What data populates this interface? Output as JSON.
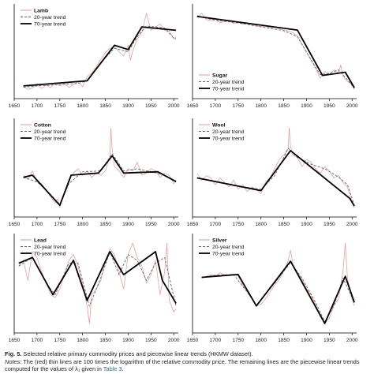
{
  "caption": {
    "figure_label": "Fig. 5.",
    "title": "Selected relative primary commodity prices and piecewise linear trends (HKMW dataset).",
    "notes_label": "Notes:",
    "notes_text": "The (red) thin lines are 100 times the logarithm of the relative commodity price. The remaining lines are the piecewise linear trends computed for the values of λ₁ given in",
    "notes_ref": "Table 3",
    "notes_end": "."
  },
  "colors": {
    "raw": "#e8a0a0",
    "trend20": "#666666",
    "trend70": "#000000",
    "axis": "#000000"
  },
  "chart_data": [
    {
      "type": "line",
      "panel": "Lamb",
      "legend": [
        "Lamb",
        "20-year trend",
        "70-year trend"
      ],
      "legend_position": "top-left",
      "x_ticks": [
        "1650",
        "1700",
        "1750",
        "1800",
        "1850",
        "1900",
        "1950",
        "2000"
      ],
      "xlim": [
        1650,
        2010
      ],
      "series": [
        {
          "name": "Lamb",
          "x": [
            1670,
            1680,
            1690,
            1700,
            1710,
            1720,
            1730,
            1740,
            1750,
            1760,
            1770,
            1780,
            1790,
            1800,
            1810,
            1820,
            1830,
            1840,
            1850,
            1860,
            1870,
            1880,
            1890,
            1900,
            1905,
            1910,
            1920,
            1930,
            1940,
            1945,
            1950,
            1960,
            1970,
            1980,
            1990,
            2000,
            2005
          ],
          "y": [
            -2,
            -8,
            -5,
            5,
            -6,
            2,
            -4,
            8,
            0,
            6,
            -3,
            3,
            10,
            -2,
            22,
            30,
            45,
            62,
            78,
            88,
            92,
            80,
            70,
            95,
            60,
            82,
            110,
            125,
            170,
            150,
            130,
            138,
            145,
            130,
            128,
            110,
            115
          ]
        },
        {
          "name": "20-year trend",
          "x": [
            1670,
            1700,
            1730,
            1760,
            1790,
            1810,
            1840,
            1870,
            1900,
            1920,
            1940,
            1960,
            1980,
            2000,
            2005
          ],
          "y": [
            -3,
            0,
            2,
            4,
            6,
            12,
            55,
            88,
            80,
            115,
            140,
            138,
            135,
            112,
            110
          ]
        },
        {
          "name": "70-year trend",
          "x": [
            1670,
            1810,
            1870,
            1900,
            1930,
            2005
          ],
          "y": [
            0,
            12,
            95,
            85,
            138,
            130
          ]
        }
      ]
    },
    {
      "type": "line",
      "panel": "Sugar",
      "legend": [
        "Sugar",
        "20-year trend",
        "70-year trend"
      ],
      "legend_position": "bottom-left",
      "x_ticks": [
        "1650",
        "1700",
        "1750",
        "1800",
        "1850",
        "1900",
        "1950",
        "2000"
      ],
      "xlim": [
        1650,
        2010
      ],
      "series": [
        {
          "name": "Sugar",
          "x": [
            1660,
            1670,
            1680,
            1690,
            1700,
            1710,
            1720,
            1730,
            1740,
            1750,
            1760,
            1770,
            1780,
            1790,
            1800,
            1810,
            1820,
            1830,
            1840,
            1850,
            1860,
            1870,
            1880,
            1890,
            1900,
            1910,
            1920,
            1930,
            1940,
            1950,
            1960,
            1970,
            1975,
            1980,
            1990,
            2000,
            2005
          ],
          "y": [
            128,
            140,
            120,
            118,
            125,
            110,
            115,
            118,
            108,
            112,
            106,
            110,
            104,
            102,
            98,
            100,
            95,
            96,
            92,
            88,
            85,
            80,
            70,
            45,
            20,
            -5,
            -30,
            -60,
            -40,
            -50,
            -35,
            -45,
            -20,
            -55,
            -70,
            -80,
            -95
          ]
        },
        {
          "name": "20-year trend",
          "x": [
            1660,
            1700,
            1750,
            1800,
            1850,
            1880,
            1900,
            1930,
            1950,
            1970,
            1990,
            2005
          ],
          "y": [
            132,
            118,
            110,
            98,
            86,
            68,
            20,
            -50,
            -45,
            -35,
            -65,
            -92
          ]
        },
        {
          "name": "70-year trend",
          "x": [
            1660,
            1880,
            1935,
            1985,
            2005
          ],
          "y": [
            130,
            88,
            -52,
            -42,
            -90
          ]
        }
      ]
    },
    {
      "type": "line",
      "panel": "Cotton",
      "legend": [
        "Cotton",
        "20-year trend",
        "70-year trend"
      ],
      "legend_position": "top-left",
      "x_ticks": [
        "1650",
        "1700",
        "1750",
        "1800",
        "1850",
        "1900",
        "1950",
        "2000"
      ],
      "xlim": [
        1650,
        2010
      ],
      "series": [
        {
          "name": "Cotton",
          "x": [
            1670,
            1680,
            1690,
            1700,
            1710,
            1720,
            1730,
            1740,
            1745,
            1750,
            1760,
            1770,
            1780,
            1790,
            1800,
            1810,
            1820,
            1830,
            1840,
            1850,
            1860,
            1862,
            1865,
            1870,
            1880,
            1890,
            1900,
            1910,
            1920,
            1930,
            1940,
            1950,
            1960,
            1970,
            1980,
            1990,
            2000,
            2005
          ],
          "y": [
            -20,
            -30,
            -10,
            -35,
            -40,
            -55,
            -70,
            -85,
            -75,
            -95,
            -60,
            -30,
            -15,
            -5,
            -20,
            -10,
            -25,
            -15,
            -20,
            -10,
            25,
            90,
            40,
            0,
            -10,
            -25,
            -5,
            -10,
            10,
            -20,
            -15,
            -5,
            -10,
            -25,
            -15,
            -20,
            -40,
            -30
          ]
        },
        {
          "name": "20-year trend",
          "x": [
            1670,
            1700,
            1730,
            1750,
            1770,
            1800,
            1840,
            1865,
            1890,
            1920,
            1950,
            1980,
            2005
          ],
          "y": [
            -25,
            -35,
            -65,
            -88,
            -40,
            -12,
            -10,
            30,
            -10,
            -5,
            -12,
            -20,
            -35
          ]
        },
        {
          "name": "70-year trend",
          "x": [
            1670,
            1690,
            1750,
            1775,
            1835,
            1865,
            1890,
            1965,
            2005
          ],
          "y": [
            -25,
            -20,
            -90,
            -20,
            -15,
            25,
            -15,
            -12,
            -35
          ]
        }
      ]
    },
    {
      "type": "line",
      "panel": "Wool",
      "legend": [
        "Wool",
        "20-year trend",
        "70-year trend"
      ],
      "legend_position": "top-left",
      "x_ticks": [
        "1650",
        "1700",
        "1750",
        "1800",
        "1850",
        "1900",
        "1950",
        "2000"
      ],
      "xlim": [
        1650,
        2010
      ],
      "series": [
        {
          "name": "Wool",
          "x": [
            1660,
            1670,
            1680,
            1690,
            1700,
            1710,
            1720,
            1730,
            1740,
            1750,
            1760,
            1770,
            1780,
            1790,
            1800,
            1810,
            1820,
            1830,
            1840,
            1850,
            1860,
            1862,
            1865,
            1870,
            1880,
            1890,
            1900,
            1910,
            1920,
            1930,
            1940,
            1950,
            1960,
            1970,
            1980,
            1990,
            2000,
            2005
          ],
          "y": [
            -20,
            -35,
            -25,
            -30,
            -45,
            -30,
            -40,
            -50,
            -35,
            -55,
            -45,
            -60,
            -50,
            -55,
            -65,
            -40,
            -30,
            -10,
            10,
            20,
            35,
            80,
            40,
            20,
            15,
            -5,
            10,
            5,
            -10,
            -20,
            -5,
            -15,
            -30,
            -25,
            -40,
            -50,
            -85,
            -95
          ]
        },
        {
          "name": "20-year trend",
          "x": [
            1660,
            1700,
            1750,
            1800,
            1830,
            1860,
            1880,
            1910,
            1940,
            1970,
            1990,
            2005
          ],
          "y": [
            -30,
            -38,
            -48,
            -55,
            -25,
            35,
            15,
            0,
            -10,
            -28,
            -45,
            -90
          ]
        },
        {
          "name": "70-year trend",
          "x": [
            1660,
            1800,
            1865,
            1995,
            2005
          ],
          "y": [
            -30,
            -58,
            30,
            -75,
            -92
          ]
        }
      ]
    },
    {
      "type": "line",
      "panel": "Lead",
      "legend": [
        "Lead",
        "20-year trend",
        "70-year trend"
      ],
      "legend_position": "top-left",
      "x_ticks": [
        "1650",
        "1700",
        "1750",
        "1800",
        "1850",
        "1900",
        "1950",
        "2000"
      ],
      "xlim": [
        1650,
        2010
      ],
      "series": [
        {
          "name": "Lead",
          "x": [
            1660,
            1670,
            1680,
            1690,
            1700,
            1710,
            1720,
            1730,
            1740,
            1750,
            1760,
            1770,
            1780,
            1790,
            1800,
            1810,
            1815,
            1820,
            1830,
            1840,
            1850,
            1860,
            1870,
            1880,
            1890,
            1900,
            1910,
            1920,
            1930,
            1940,
            1950,
            1960,
            1970,
            1980,
            1985,
            1990,
            2000,
            2005
          ],
          "y": [
            20,
            30,
            -5,
            45,
            35,
            10,
            -10,
            -30,
            -35,
            -20,
            5,
            30,
            40,
            20,
            -10,
            -50,
            -80,
            -30,
            -20,
            -5,
            30,
            50,
            40,
            10,
            -20,
            40,
            60,
            35,
            20,
            -10,
            5,
            30,
            -30,
            10,
            60,
            -40,
            -60,
            -55
          ]
        },
        {
          "name": "20-year trend",
          "x": [
            1660,
            1690,
            1720,
            1740,
            1770,
            1790,
            1815,
            1840,
            1860,
            1880,
            1900,
            1920,
            1940,
            1960,
            1980,
            2005
          ],
          "y": [
            20,
            35,
            -10,
            -30,
            25,
            25,
            -50,
            0,
            45,
            5,
            40,
            30,
            -5,
            25,
            35,
            -50
          ]
        },
        {
          "name": "70-year trend",
          "x": [
            1660,
            1690,
            1735,
            1780,
            1810,
            1860,
            1890,
            1960,
            1975,
            2005
          ],
          "y": [
            25,
            35,
            -30,
            30,
            -40,
            45,
            5,
            45,
            -5,
            -45
          ]
        }
      ]
    },
    {
      "type": "line",
      "panel": "Silver",
      "legend": [
        "Silver",
        "20-year trend",
        "70-year trend"
      ],
      "legend_position": "top-left",
      "x_ticks": [
        "1650",
        "1700",
        "1750",
        "1800",
        "1850",
        "1900",
        "1950",
        "2000"
      ],
      "xlim": [
        1650,
        2010
      ],
      "series": [
        {
          "name": "Silver",
          "x": [
            1670,
            1680,
            1690,
            1700,
            1710,
            1720,
            1730,
            1740,
            1750,
            1760,
            1770,
            1780,
            1790,
            1800,
            1810,
            1820,
            1830,
            1840,
            1850,
            1860,
            1865,
            1870,
            1880,
            1890,
            1900,
            1910,
            1920,
            1930,
            1940,
            1950,
            1960,
            1970,
            1980,
            1985,
            1990,
            2000,
            2005
          ],
          "y": [
            40,
            45,
            50,
            45,
            55,
            50,
            48,
            52,
            45,
            20,
            0,
            -20,
            -40,
            -35,
            -20,
            0,
            20,
            35,
            60,
            90,
            120,
            80,
            55,
            35,
            10,
            -10,
            -35,
            -70,
            -90,
            -75,
            -40,
            -20,
            60,
            140,
            40,
            -20,
            -40
          ]
        },
        {
          "name": "20-year trend",
          "x": [
            1670,
            1700,
            1740,
            1770,
            1790,
            1830,
            1865,
            1890,
            1920,
            1940,
            1960,
            1980,
            2005
          ],
          "y": [
            42,
            48,
            50,
            0,
            -38,
            25,
            85,
            40,
            -30,
            -85,
            -40,
            40,
            -30
          ]
        },
        {
          "name": "70-year trend",
          "x": [
            1670,
            1750,
            1790,
            1865,
            1940,
            1985,
            2005
          ],
          "y": [
            42,
            50,
            -40,
            88,
            -90,
            45,
            -30
          ]
        }
      ]
    }
  ]
}
